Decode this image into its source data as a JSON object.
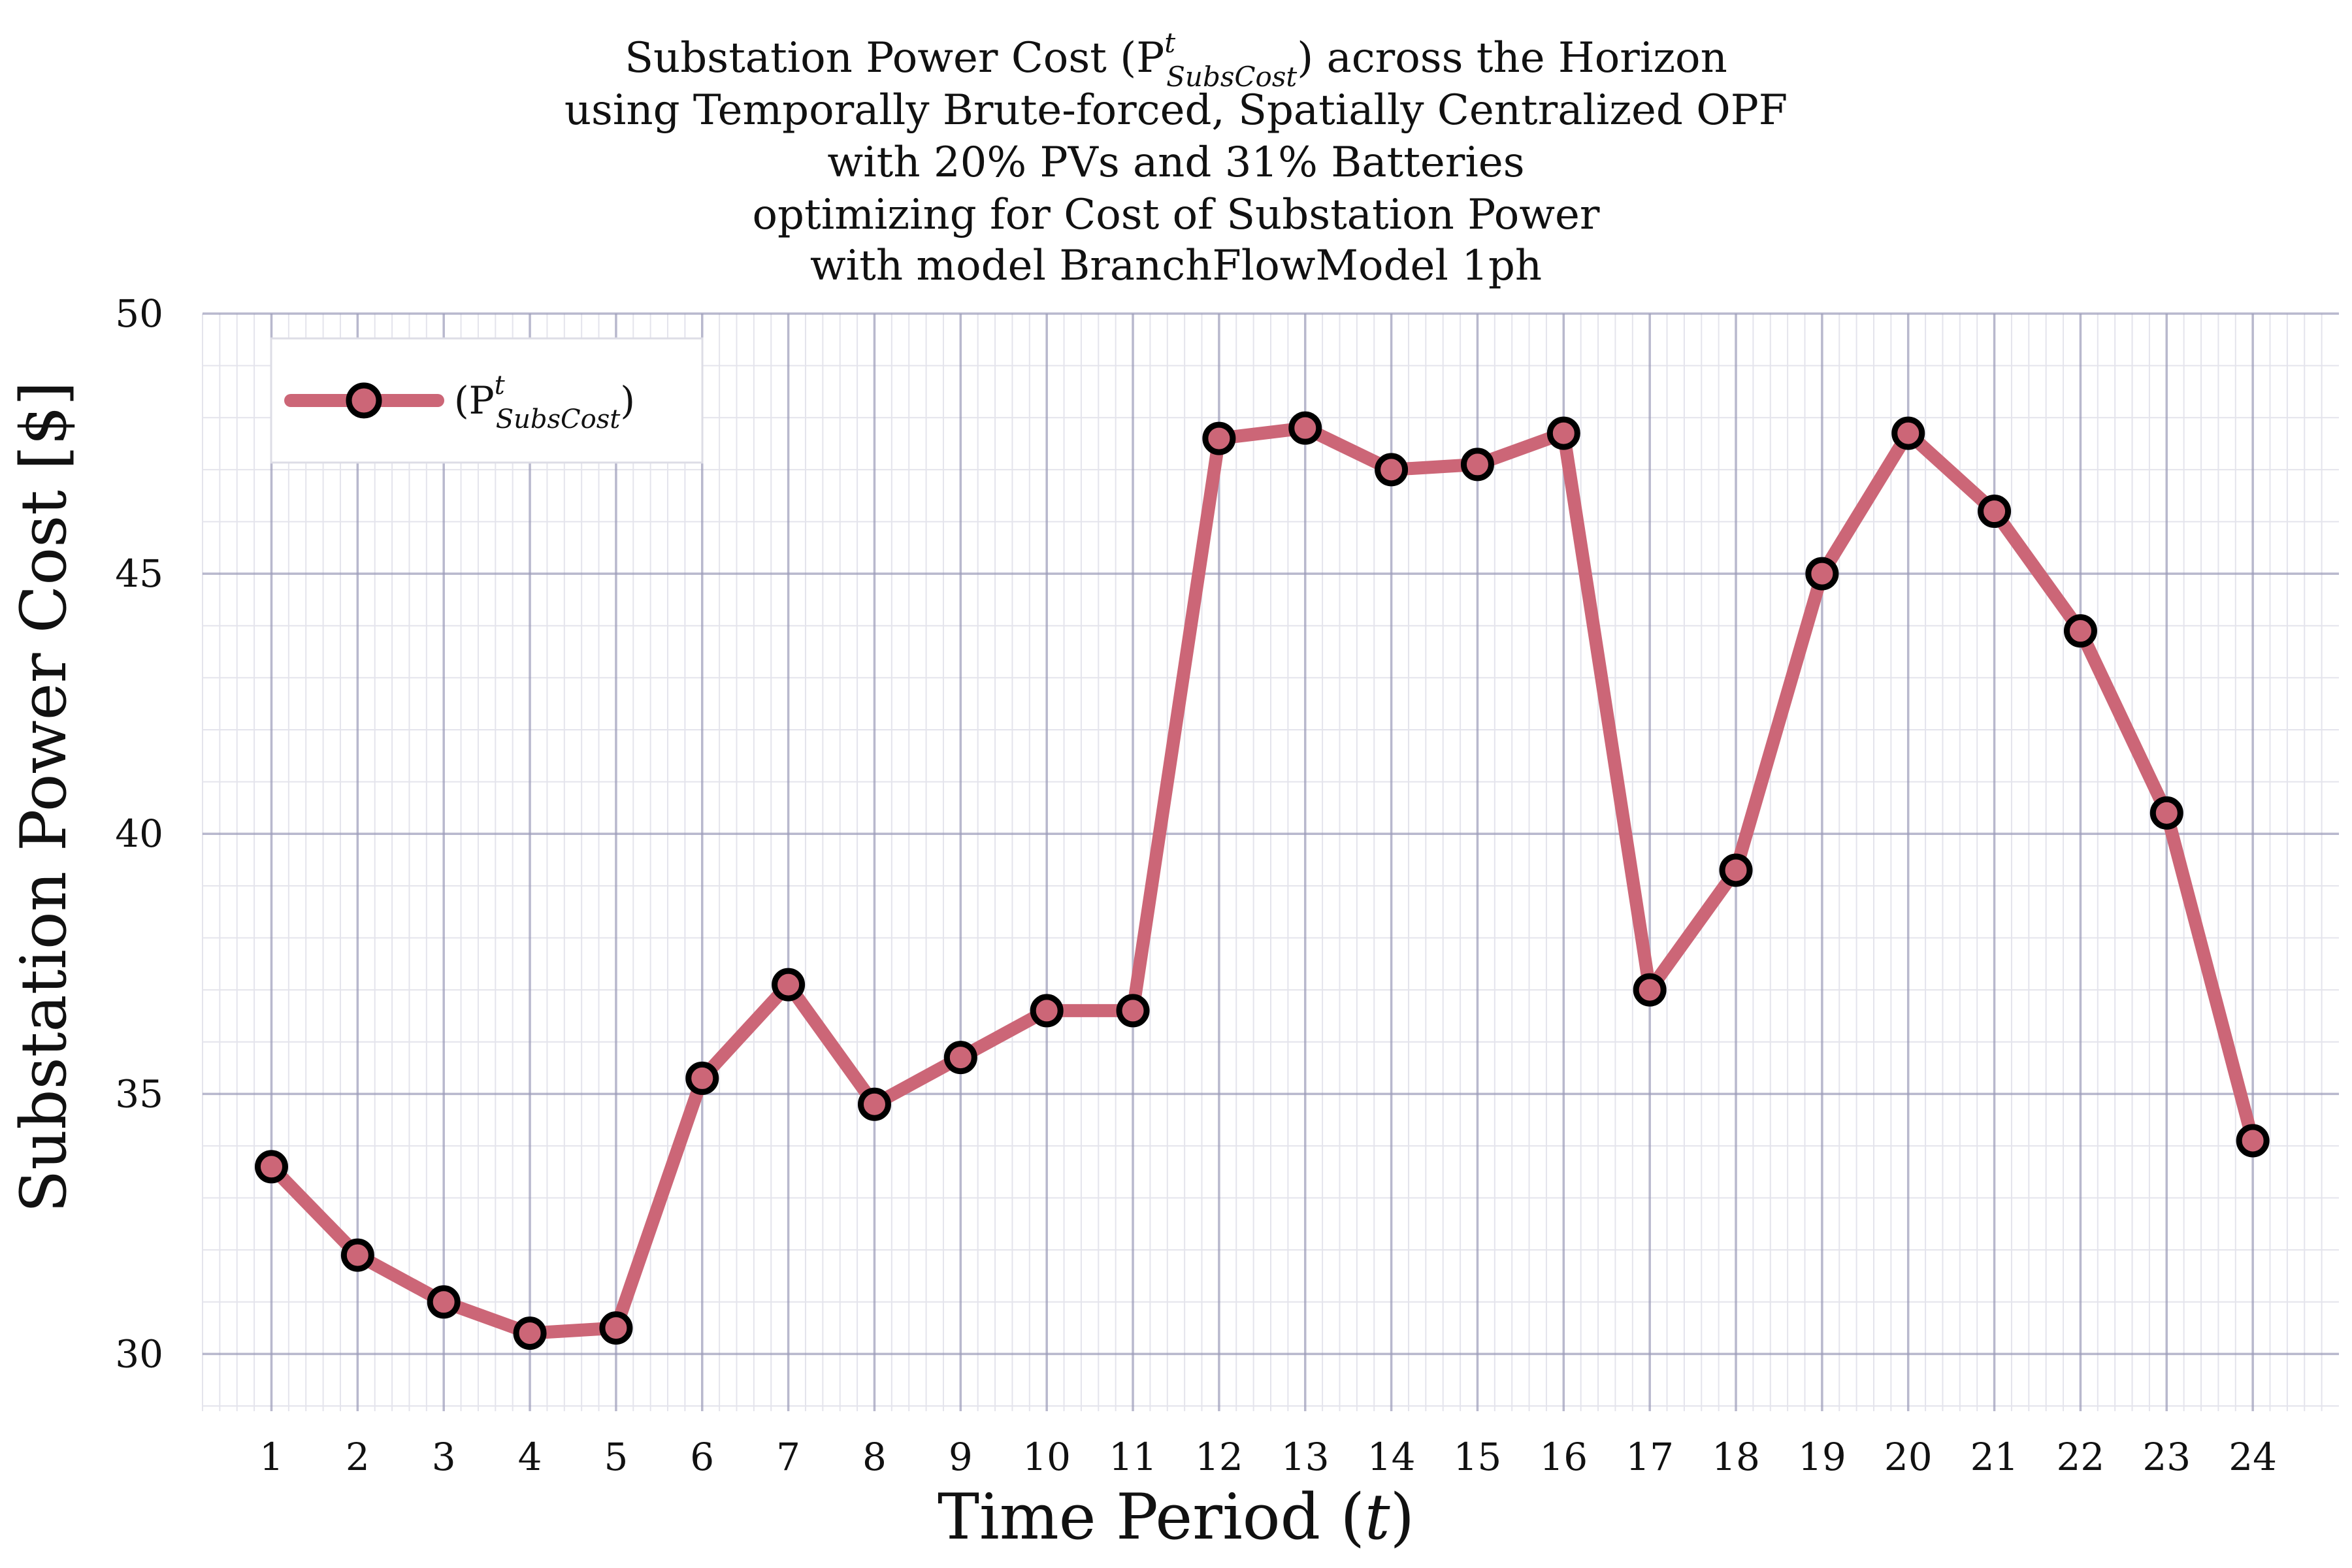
{
  "chart_data": {
    "type": "line",
    "title_lines": [
      "Substation Power Cost (P",
      "using Temporally Brute-forced, Spatially Centralized OPF",
      "with 20% PVs and 31% Batteries",
      "optimizing for Cost of Substation Power",
      "with model BranchFlowModel 1ph"
    ],
    "title_symbol": {
      "base": "P",
      "sup": "t",
      "sub": "SubsCost",
      "suffix": ") across the Horizon"
    },
    "xlabel": "Time Period (",
    "xlabel_var": "t",
    "xlabel_close": ")",
    "ylabel": "Substation Power Cost [$]",
    "x": [
      1,
      2,
      3,
      4,
      5,
      6,
      7,
      8,
      9,
      10,
      11,
      12,
      13,
      14,
      15,
      16,
      17,
      18,
      19,
      20,
      21,
      22,
      23,
      24
    ],
    "series": [
      {
        "name": "(P",
        "legend_sup": "t",
        "legend_sub": "SubsCost",
        "legend_close": ")",
        "values": [
          33.6,
          31.9,
          31.0,
          30.4,
          30.5,
          35.3,
          37.1,
          34.8,
          35.7,
          36.6,
          36.6,
          47.6,
          47.8,
          47.0,
          47.1,
          47.7,
          37.0,
          39.3,
          45.0,
          47.7,
          46.2,
          43.9,
          40.4,
          34.1
        ]
      }
    ],
    "x_ticks": [
      "1",
      "2",
      "3",
      "4",
      "5",
      "6",
      "7",
      "8",
      "9",
      "10",
      "11",
      "12",
      "13",
      "14",
      "15",
      "16",
      "17",
      "18",
      "19",
      "20",
      "21",
      "22",
      "23",
      "24"
    ],
    "y_ticks": [
      "30",
      "35",
      "40",
      "45",
      "50"
    ],
    "ylim": [
      28.9,
      50
    ],
    "xlim": [
      0.2,
      25.0
    ],
    "grid": true,
    "legend_position": "top-left",
    "colors": {
      "line": "#cc6677",
      "marker_edge": "#000000",
      "grid_major": "#9a9ab8",
      "grid_minor": "#e4e4ec"
    }
  }
}
